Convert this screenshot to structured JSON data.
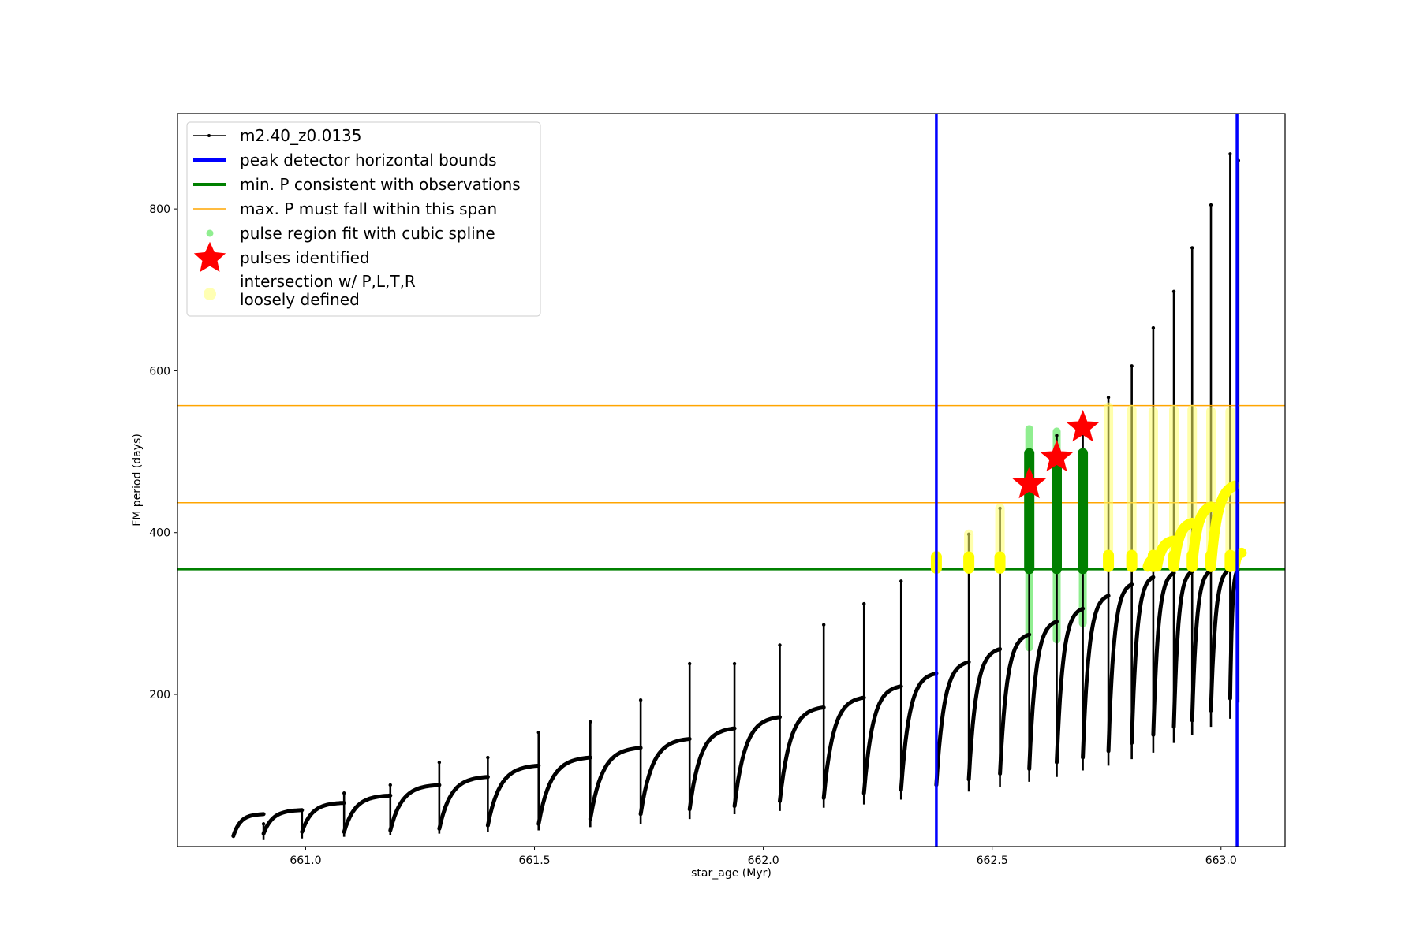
{
  "chart_data": {
    "type": "line",
    "title": "",
    "xlabel": "star_age (Myr)",
    "ylabel": "FM period (days)",
    "xlim": [
      660.72,
      663.14
    ],
    "ylim": [
      12,
      918
    ],
    "xticks": [
      {
        "value": 661.0,
        "label": "661.0"
      },
      {
        "value": 661.5,
        "label": "661.5"
      },
      {
        "value": 662.0,
        "label": "662.0"
      },
      {
        "value": 662.5,
        "label": "662.5"
      },
      {
        "value": 663.0,
        "label": "663.0"
      }
    ],
    "yticks": [
      {
        "value": 200,
        "label": "200"
      },
      {
        "value": 400,
        "label": "400"
      },
      {
        "value": 600,
        "label": "600"
      },
      {
        "value": 800,
        "label": "800"
      }
    ],
    "grid": false,
    "legend_position": "top-left",
    "legend": [
      {
        "label": "m2.40_z0.0135",
        "kind": "line-marker",
        "color": "#000000"
      },
      {
        "label": "peak detector horizontal bounds",
        "kind": "line",
        "color": "#0000ff"
      },
      {
        "label": "min. P consistent with observations",
        "kind": "line",
        "color": "#008000"
      },
      {
        "label": "max. P must fall within this span",
        "kind": "line",
        "color": "#ffa500"
      },
      {
        "label": "pulse region fit with cubic spline",
        "kind": "dot",
        "color": "#90ee90"
      },
      {
        "label": "pulses identified",
        "kind": "star",
        "color": "#ff0000"
      },
      {
        "label": "intersection w/ P,L,T,R\nloosely defined",
        "kind": "circle",
        "color": "#ffff99"
      }
    ],
    "vertical_lines": [
      {
        "x": 662.378,
        "color": "#0000ff"
      },
      {
        "x": 663.035,
        "color": "#0000ff"
      }
    ],
    "horizontal_lines": [
      {
        "y": 355,
        "color": "#008000",
        "width": "thick"
      },
      {
        "y": 557,
        "color": "#ffa500",
        "width": "thin"
      },
      {
        "y": 437,
        "color": "#ffa500",
        "width": "thin"
      }
    ],
    "pulses": [
      {
        "x0": 660.842,
        "x1": 660.908,
        "base": 25,
        "top": 52,
        "peak": 40,
        "drop": 20
      },
      {
        "x0": 660.908,
        "x1": 660.992,
        "base": 28,
        "top": 57,
        "peak": 57,
        "drop": 22
      },
      {
        "x0": 660.992,
        "x1": 661.084,
        "base": 30,
        "top": 66,
        "peak": 78,
        "drop": 24
      },
      {
        "x0": 661.084,
        "x1": 661.185,
        "base": 30,
        "top": 75,
        "peak": 88,
        "drop": 26
      },
      {
        "x0": 661.185,
        "x1": 661.292,
        "base": 32,
        "top": 88,
        "peak": 116,
        "drop": 28
      },
      {
        "x0": 661.292,
        "x1": 661.398,
        "base": 34,
        "top": 98,
        "peak": 122,
        "drop": 30
      },
      {
        "x0": 661.398,
        "x1": 661.509,
        "base": 38,
        "top": 112,
        "peak": 153,
        "drop": 32
      },
      {
        "x0": 661.509,
        "x1": 661.622,
        "base": 40,
        "top": 122,
        "peak": 166,
        "drop": 36
      },
      {
        "x0": 661.622,
        "x1": 661.732,
        "base": 46,
        "top": 134,
        "peak": 193,
        "drop": 40
      },
      {
        "x0": 661.732,
        "x1": 661.839,
        "base": 52,
        "top": 145,
        "peak": 238,
        "drop": 46
      },
      {
        "x0": 661.839,
        "x1": 661.937,
        "base": 58,
        "top": 158,
        "peak": 238,
        "drop": 52
      },
      {
        "x0": 661.937,
        "x1": 662.036,
        "base": 62,
        "top": 172,
        "peak": 261,
        "drop": 56
      },
      {
        "x0": 662.036,
        "x1": 662.132,
        "base": 68,
        "top": 184,
        "peak": 286,
        "drop": 60
      },
      {
        "x0": 662.132,
        "x1": 662.22,
        "base": 72,
        "top": 196,
        "peak": 312,
        "drop": 64
      },
      {
        "x0": 662.22,
        "x1": 662.301,
        "base": 78,
        "top": 210,
        "peak": 340,
        "drop": 70
      },
      {
        "x0": 662.301,
        "x1": 662.378,
        "base": 82,
        "top": 226,
        "peak": 357,
        "drop": 75
      },
      {
        "x0": 662.378,
        "x1": 662.449,
        "base": 88,
        "top": 240,
        "peak": 398,
        "drop": 80
      },
      {
        "x0": 662.449,
        "x1": 662.517,
        "base": 95,
        "top": 256,
        "peak": 430,
        "drop": 86
      },
      {
        "x0": 662.517,
        "x1": 662.581,
        "base": 102,
        "top": 274,
        "peak": 500,
        "drop": 92
      },
      {
        "x0": 662.581,
        "x1": 662.641,
        "base": 108,
        "top": 290,
        "peak": 520,
        "drop": 98
      },
      {
        "x0": 662.641,
        "x1": 662.698,
        "base": 116,
        "top": 306,
        "peak": 530,
        "drop": 106
      },
      {
        "x0": 662.698,
        "x1": 662.754,
        "base": 122,
        "top": 322,
        "peak": 567,
        "drop": 112
      },
      {
        "x0": 662.754,
        "x1": 662.805,
        "base": 130,
        "top": 336,
        "peak": 606,
        "drop": 120
      },
      {
        "x0": 662.805,
        "x1": 662.852,
        "base": 140,
        "top": 345,
        "peak": 653,
        "drop": 128
      },
      {
        "x0": 662.852,
        "x1": 662.897,
        "base": 150,
        "top": 350,
        "peak": 698,
        "drop": 140
      },
      {
        "x0": 662.897,
        "x1": 662.937,
        "base": 160,
        "top": 352,
        "peak": 752,
        "drop": 150
      },
      {
        "x0": 662.937,
        "x1": 662.978,
        "base": 168,
        "top": 353,
        "peak": 805,
        "drop": 160
      },
      {
        "x0": 662.978,
        "x1": 663.02,
        "base": 180,
        "top": 355,
        "peak": 868,
        "drop": 170
      },
      {
        "x0": 663.02,
        "x1": 663.038,
        "base": 195,
        "top": 355,
        "peak": 860,
        "drop": 190
      }
    ],
    "spline_regions": [
      {
        "x": 662.581,
        "y_min": 258,
        "y_max": 528
      },
      {
        "x": 662.641,
        "y_min": 268,
        "y_max": 525
      },
      {
        "x": 662.698,
        "y_min": 288,
        "y_max": 498
      }
    ],
    "dark_green_regions": [
      {
        "x": 662.581,
        "y_min": 355,
        "y_max": 498
      },
      {
        "x": 662.641,
        "y_min": 355,
        "y_max": 495
      },
      {
        "x": 662.698,
        "y_min": 355,
        "y_max": 498
      }
    ],
    "pulses_identified": [
      {
        "x": 662.581,
        "y": 460
      },
      {
        "x": 662.641,
        "y": 493
      },
      {
        "x": 662.698,
        "y": 530
      }
    ],
    "intersection_regions": [
      {
        "x": 662.378,
        "y_min": 356,
        "y_max": 372
      },
      {
        "x": 662.449,
        "y_min": 356,
        "y_max": 398
      },
      {
        "x": 662.517,
        "y_min": 356,
        "y_max": 430
      },
      {
        "x": 662.754,
        "y_min": 358,
        "y_max": 555
      },
      {
        "x": 662.805,
        "y_min": 358,
        "y_max": 552
      },
      {
        "x": 662.852,
        "y_min": 358,
        "y_max": 550
      },
      {
        "x": 662.897,
        "y_min": 358,
        "y_max": 552
      },
      {
        "x": 662.937,
        "y_min": 358,
        "y_max": 552
      },
      {
        "x": 662.978,
        "y_min": 358,
        "y_max": 550
      },
      {
        "x": 663.02,
        "y_min": 358,
        "y_max": 550
      }
    ],
    "intersection_arcs": [
      {
        "x0": 662.84,
        "x1": 662.86,
        "y0": 358,
        "y1": 368
      },
      {
        "x0": 662.86,
        "x1": 662.897,
        "y0": 358,
        "y1": 390
      },
      {
        "x0": 662.897,
        "x1": 662.937,
        "y0": 358,
        "y1": 412
      },
      {
        "x0": 662.937,
        "x1": 662.978,
        "y0": 358,
        "y1": 432
      },
      {
        "x0": 662.978,
        "x1": 663.03,
        "y0": 358,
        "y1": 458
      },
      {
        "x0": 663.03,
        "x1": 663.045,
        "y0": 358,
        "y1": 375
      }
    ]
  }
}
